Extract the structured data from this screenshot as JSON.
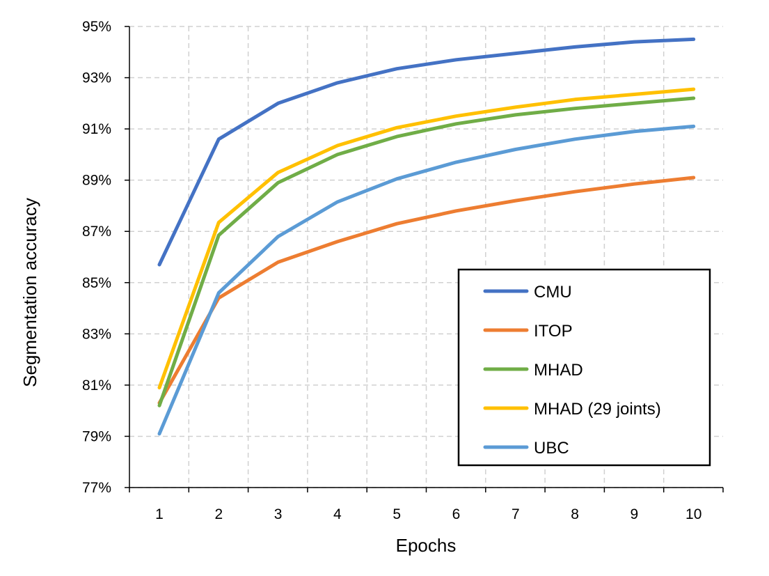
{
  "chart_data": {
    "type": "line",
    "title": "",
    "xlabel": "Epochs",
    "ylabel": "Segmentation accuracy",
    "x": [
      1,
      2,
      3,
      4,
      5,
      6,
      7,
      8,
      9,
      10
    ],
    "x_tick_labels": [
      "1",
      "2",
      "3",
      "4",
      "5",
      "6",
      "7",
      "8",
      "9",
      "10"
    ],
    "ylim": [
      77,
      95
    ],
    "y_ticks": [
      77,
      79,
      81,
      83,
      85,
      87,
      89,
      91,
      93,
      95
    ],
    "y_tick_labels": [
      "77%",
      "79%",
      "81%",
      "83%",
      "85%",
      "87%",
      "89%",
      "91%",
      "93%",
      "95%"
    ],
    "grid": true,
    "legend_position": "bottom-right",
    "series": [
      {
        "name": "CMU",
        "color": "#4472C4",
        "values": [
          85.7,
          90.6,
          92.0,
          92.8,
          93.35,
          93.7,
          93.95,
          94.2,
          94.4,
          94.5
        ]
      },
      {
        "name": "ITOP",
        "color": "#ED7D31",
        "values": [
          80.3,
          84.4,
          85.8,
          86.6,
          87.3,
          87.8,
          88.2,
          88.55,
          88.85,
          89.1
        ]
      },
      {
        "name": "MHAD",
        "color": "#70AD47",
        "values": [
          80.2,
          86.85,
          88.9,
          90.0,
          90.7,
          91.2,
          91.55,
          91.8,
          92.0,
          92.2
        ]
      },
      {
        "name": "MHAD (29 joints)",
        "color": "#FFC000",
        "values": [
          80.9,
          87.35,
          89.3,
          90.35,
          91.05,
          91.5,
          91.85,
          92.15,
          92.35,
          92.55
        ]
      },
      {
        "name": "UBC",
        "color": "#5B9BD5",
        "values": [
          79.1,
          84.6,
          86.8,
          88.15,
          89.05,
          89.7,
          90.2,
          90.6,
          90.9,
          91.1
        ]
      }
    ]
  }
}
